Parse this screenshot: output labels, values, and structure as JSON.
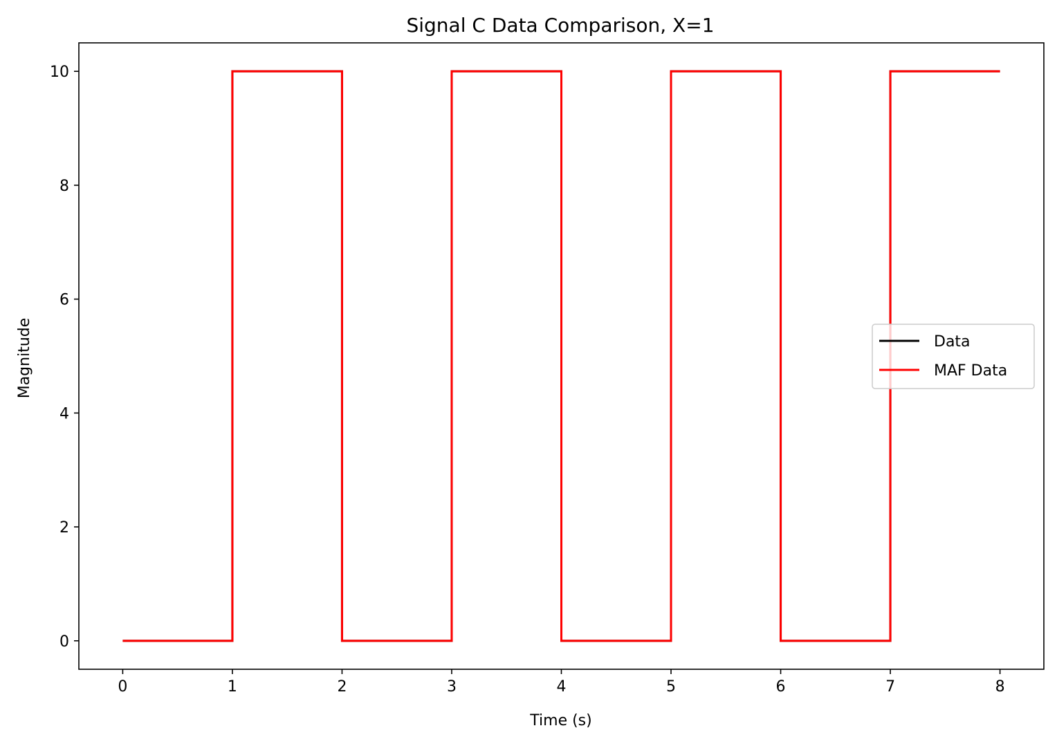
{
  "chart_data": {
    "type": "line",
    "title": "Signal C Data Comparison, X=1",
    "xlabel": "Time (s)",
    "ylabel": "Magnitude",
    "xlim": [
      -0.4,
      8.4
    ],
    "ylim": [
      -0.5,
      10.5
    ],
    "xticks": [
      0,
      1,
      2,
      3,
      4,
      5,
      6,
      7,
      8
    ],
    "yticks": [
      0,
      2,
      4,
      6,
      8,
      10
    ],
    "grid": false,
    "legend_position": "center-right",
    "series": [
      {
        "name": "Data",
        "color": "#000000",
        "x": [
          0,
          1,
          1,
          2,
          2,
          3,
          3,
          4,
          4,
          5,
          5,
          6,
          6,
          7,
          7,
          8
        ],
        "y": [
          0,
          0,
          10,
          10,
          0,
          0,
          10,
          10,
          0,
          0,
          10,
          10,
          0,
          0,
          10,
          10
        ]
      },
      {
        "name": "MAF Data",
        "color": "#ff0000",
        "x": [
          0,
          1,
          1,
          2,
          2,
          3,
          3,
          4,
          4,
          5,
          5,
          6,
          6,
          7,
          7,
          8
        ],
        "y": [
          0,
          0,
          10,
          10,
          0,
          0,
          10,
          10,
          0,
          0,
          10,
          10,
          0,
          0,
          10,
          10
        ]
      }
    ]
  }
}
